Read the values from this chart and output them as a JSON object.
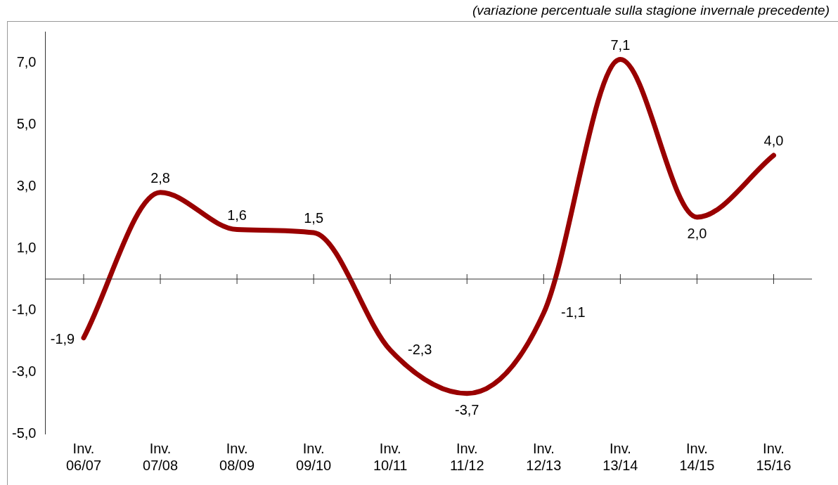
{
  "chart_data": {
    "type": "line",
    "subtitle": "(variazione percentuale sulla stagione invernale precedente)",
    "categories": [
      "Inv. 06/07",
      "Inv. 07/08",
      "Inv. 08/09",
      "Inv. 09/10",
      "Inv. 10/11",
      "Inv. 11/12",
      "Inv. 12/13",
      "Inv. 13/14",
      "Inv. 14/15",
      "Inv. 15/16"
    ],
    "series": [
      {
        "color": "#990000",
        "values": [
          -1.9,
          2.8,
          1.6,
          1.5,
          -2.3,
          -3.7,
          -1.1,
          7.1,
          2.0,
          4.0
        ],
        "value_labels": [
          "-1,9",
          "2,8",
          "1,6",
          "1,5",
          "-2,3",
          "-3,7",
          "-1,1",
          "7,1",
          "2,0",
          "4,0"
        ]
      }
    ],
    "ylim": [
      -5,
      8
    ],
    "yticks": [
      {
        "value": -5,
        "label": "-5,0"
      },
      {
        "value": -3,
        "label": "-3,0"
      },
      {
        "value": -1,
        "label": "-1,0"
      },
      {
        "value": 1,
        "label": "1,0"
      },
      {
        "value": 3,
        "label": "3,0"
      },
      {
        "value": 5,
        "label": "5,0"
      },
      {
        "value": 7,
        "label": "7,0"
      }
    ],
    "grid": false,
    "legend": false,
    "marker": "none",
    "line_style": "solid"
  }
}
